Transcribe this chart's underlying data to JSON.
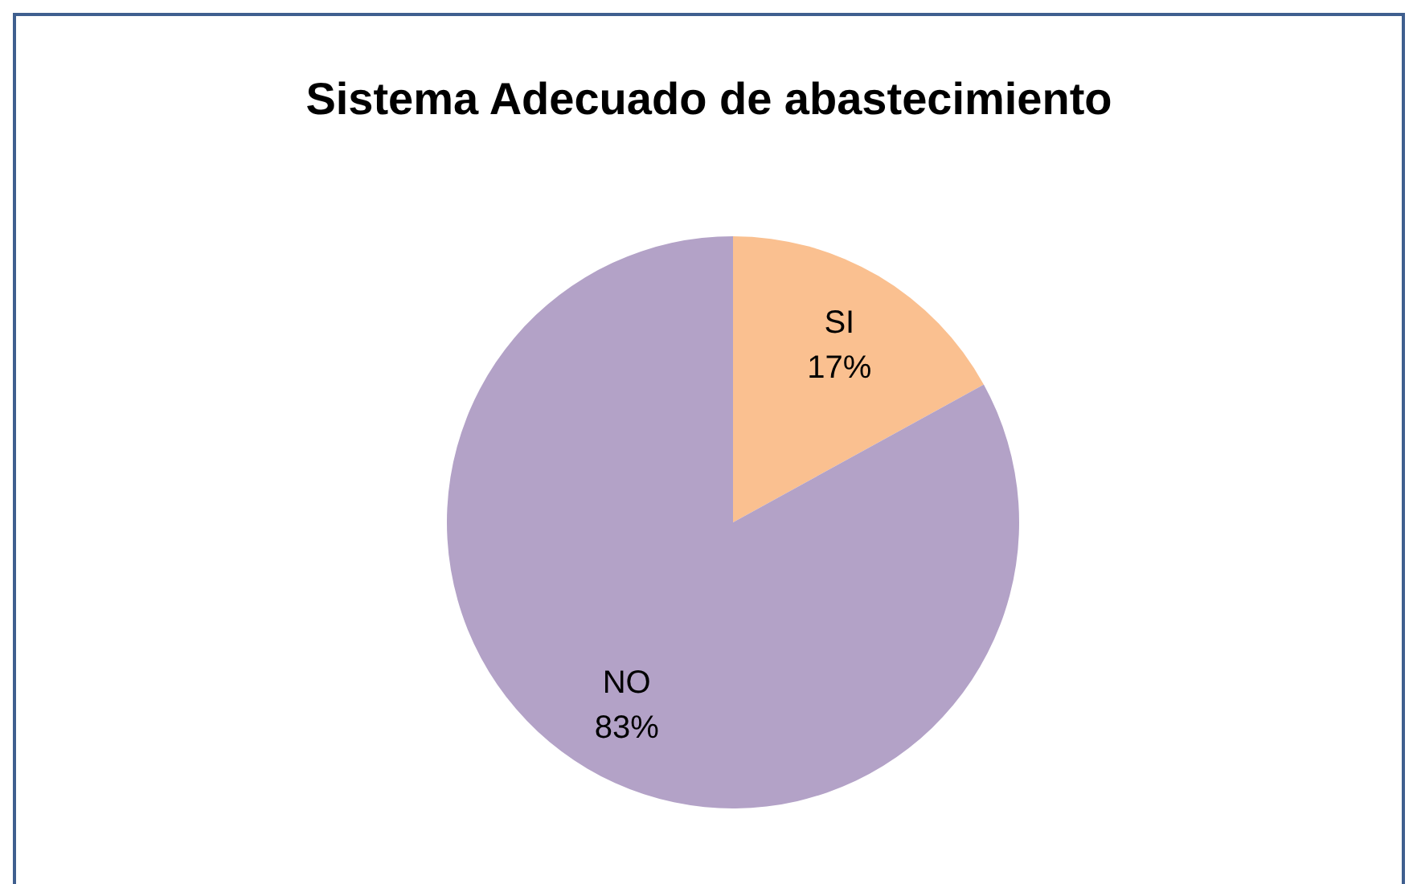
{
  "chart_data": {
    "type": "pie",
    "title": "Sistema Adecuado de abastecimiento",
    "categories": [
      "SI",
      "NO"
    ],
    "values": [
      17,
      83
    ],
    "colors": [
      "#fac090",
      "#b3a2c7"
    ],
    "value_labels": [
      "17%",
      "83%"
    ]
  }
}
